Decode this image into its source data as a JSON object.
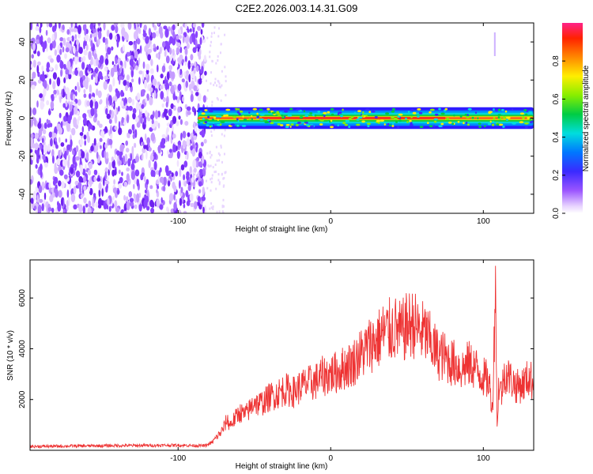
{
  "title": "C2E2.2026.003.14.31.G09",
  "chart_data": [
    {
      "type": "heatmap",
      "name": "spectrogram",
      "xlabel": "Height of straight line (km)",
      "ylabel": "Frequency (Hz)",
      "xlim": [
        -197,
        133
      ],
      "ylim": [
        -50,
        50
      ],
      "xticks": [
        -100,
        0,
        100
      ],
      "yticks": [
        -40,
        -20,
        0,
        20,
        40
      ],
      "description_values": {
        "noise_region_km": [
          -197,
          -82
        ],
        "signal_start_km": -87,
        "signal_center_hz": 0,
        "signal_halfwidth_hz": 3
      },
      "colorbar": {
        "label": "Normalized spectral amplitude",
        "range": [
          0,
          1
        ],
        "ticks": [
          "0.0",
          "0.2",
          "0.4",
          "0.6",
          "0.8"
        ],
        "tick_values": [
          0.0,
          0.2,
          0.4,
          0.6,
          0.8
        ]
      }
    },
    {
      "type": "line",
      "name": "snr",
      "xlabel": "Height of straight line (km)",
      "ylabel": "SNR (10 * v/v)",
      "xlim": [
        -197,
        133
      ],
      "ylim": [
        0,
        7500
      ],
      "xticks": [
        -100,
        0,
        100
      ],
      "yticks": [
        2000,
        4000,
        6000
      ],
      "color": "#ee3333",
      "series": [
        {
          "name": "SNR",
          "x": [
            -197,
            -150,
            -100,
            -82,
            -78,
            -75,
            -72,
            -70,
            -68,
            -66,
            -62,
            -60,
            -56,
            -52,
            -50,
            -48,
            -44,
            -40,
            -36,
            -30,
            -24,
            -20,
            -16,
            -10,
            -6,
            0,
            5,
            10,
            14,
            18,
            22,
            26,
            30,
            34,
            38,
            42,
            46,
            50,
            54,
            58,
            62,
            66,
            70,
            74,
            78,
            82,
            86,
            90,
            94,
            98,
            102,
            104,
            106,
            107,
            108,
            109,
            110,
            112,
            114,
            118,
            122,
            126,
            130,
            133
          ],
          "y": [
            150,
            180,
            200,
            180,
            300,
            500,
            700,
            900,
            1200,
            1000,
            1300,
            1500,
            1400,
            1700,
            2000,
            1800,
            1900,
            2100,
            2200,
            2400,
            2300,
            2500,
            2600,
            2700,
            2900,
            3000,
            3100,
            3300,
            3400,
            3700,
            3900,
            4200,
            4300,
            4600,
            4700,
            4800,
            4600,
            4900,
            5000,
            4700,
            4600,
            4200,
            3800,
            3700,
            3500,
            3400,
            3200,
            3400,
            3300,
            3000,
            2800,
            2600,
            1600,
            4000,
            7200,
            800,
            2500,
            2300,
            3100,
            2800,
            2500,
            2600,
            2900,
            2600
          ]
        }
      ]
    }
  ]
}
